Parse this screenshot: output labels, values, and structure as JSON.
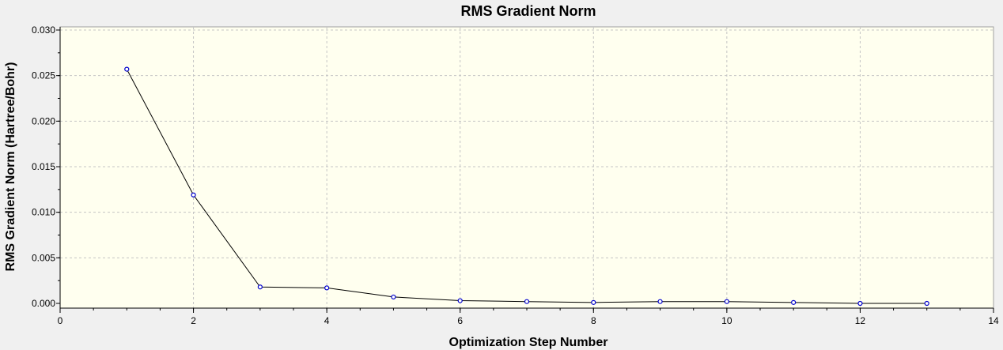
{
  "chart_data": {
    "type": "line",
    "title": "RMS Gradient Norm",
    "xlabel": "Optimization Step Number",
    "ylabel": "RMS Gradient Norm (Hartree/Bohr)",
    "xlim": [
      0,
      14
    ],
    "ylim": [
      0,
      0.03
    ],
    "x_ticks": [
      "0",
      "2",
      "4",
      "6",
      "8",
      "10",
      "12",
      "14"
    ],
    "y_ticks": [
      "0.000",
      "0.005",
      "0.010",
      "0.015",
      "0.020",
      "0.025",
      "0.030"
    ],
    "grid": true,
    "series": [
      {
        "x": [
          1,
          2,
          3,
          4,
          5,
          6,
          7,
          8,
          9,
          10,
          11,
          12,
          13
        ],
        "values": [
          0.0257,
          0.0119,
          0.0018,
          0.0017,
          0.0007,
          0.0003,
          0.0002,
          0.0001,
          0.0002,
          0.0002,
          0.0001,
          0.0,
          0.0
        ]
      }
    ],
    "colors": {
      "background": "#f0f0f0",
      "plot_background": "#ffffef",
      "grid": "#c4c4c4",
      "line": "#000000",
      "marker_stroke": "#0000cc",
      "marker_fill": "#ffffff",
      "axis": "#000000",
      "frame": "#a0a0a0"
    }
  }
}
